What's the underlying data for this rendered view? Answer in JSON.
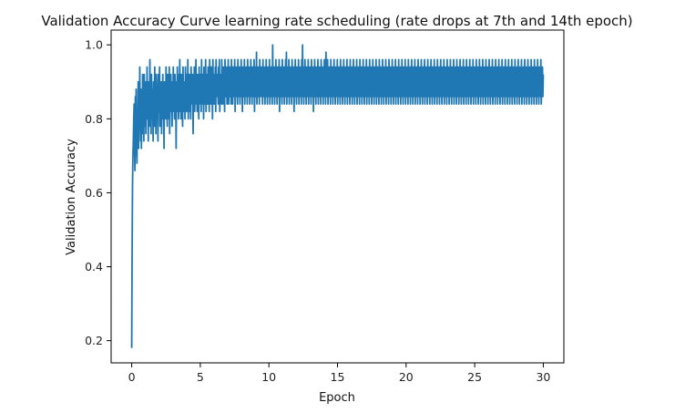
{
  "chart_data": {
    "type": "line",
    "title": "Validation Accuracy Curve learning rate scheduling (rate drops at 7th and 14th epoch)",
    "xlabel": "Epoch",
    "ylabel": "Validation Accuracy",
    "xlim": [
      -1.5,
      31.5
    ],
    "ylim": [
      0.14,
      1.04
    ],
    "xticks": [
      0,
      5,
      10,
      15,
      20,
      25,
      30
    ],
    "yticks": [
      0.2,
      0.4,
      0.6,
      0.8,
      1.0
    ],
    "grid": false,
    "legend": "none",
    "color": "#1f77b4",
    "series": [
      {
        "x_start": 0,
        "x_end": 30,
        "points_per_epoch": 25,
        "values": [
          0.18,
          0.44,
          0.62,
          0.7,
          0.74,
          0.8,
          0.84,
          0.72,
          0.66,
          0.86,
          0.7,
          0.88,
          0.76,
          0.68,
          0.82,
          0.74,
          0.9,
          0.72,
          0.86,
          0.78,
          0.94,
          0.8,
          0.74,
          0.88,
          0.72,
          0.84,
          0.76,
          0.92,
          0.8,
          0.86,
          0.74,
          0.92,
          0.84,
          0.78,
          0.9,
          0.76,
          0.86,
          0.82,
          0.94,
          0.8,
          0.88,
          0.74,
          0.9,
          0.84,
          0.78,
          0.96,
          0.82,
          0.86,
          0.76,
          0.92,
          0.84,
          0.8,
          0.88,
          0.74,
          0.9,
          0.86,
          0.78,
          0.94,
          0.82,
          0.86,
          0.76,
          0.92,
          0.88,
          0.8,
          0.84,
          0.74,
          0.92,
          0.86,
          0.82,
          0.94,
          0.78,
          0.88,
          0.84,
          0.9,
          0.76,
          0.86,
          0.82,
          0.92,
          0.8,
          0.88,
          0.72,
          0.9,
          0.84,
          0.86,
          0.8,
          0.94,
          0.82,
          0.88,
          0.78,
          0.92,
          0.86,
          0.84,
          0.8,
          0.94,
          0.76,
          0.88,
          0.86,
          0.92,
          0.82,
          0.84,
          0.78,
          0.9,
          0.86,
          0.94,
          0.82,
          0.88,
          0.8,
          0.92,
          0.84,
          0.86,
          0.72,
          0.9,
          0.86,
          0.94,
          0.82,
          0.88,
          0.8,
          0.92,
          0.84,
          0.96,
          0.82,
          0.86,
          0.8,
          0.92,
          0.88,
          0.84,
          0.78,
          0.94,
          0.86,
          0.9,
          0.82,
          0.88,
          0.8,
          0.94,
          0.86,
          0.92,
          0.82,
          0.88,
          0.84,
          0.96,
          0.8,
          0.9,
          0.86,
          0.92,
          0.82,
          0.88,
          0.8,
          0.94,
          0.86,
          0.9,
          0.84,
          0.92,
          0.76,
          0.9,
          0.86,
          0.94,
          0.82,
          0.88,
          0.84,
          0.96,
          0.86,
          0.9,
          0.82,
          0.92,
          0.88,
          0.86,
          0.8,
          0.94,
          0.84,
          0.9,
          0.86,
          0.92,
          0.82,
          0.96,
          0.86,
          0.9,
          0.84,
          0.92,
          0.8,
          0.94,
          0.86,
          0.88,
          0.84,
          0.96,
          0.82,
          0.9,
          0.86,
          0.92,
          0.84,
          0.94,
          0.86,
          0.9,
          0.82,
          0.96,
          0.88,
          0.9,
          0.84,
          0.94,
          0.86,
          0.92,
          0.8,
          0.96,
          0.88,
          0.9,
          0.84,
          0.92,
          0.86,
          0.94,
          0.82,
          0.96,
          0.88,
          0.9,
          0.86,
          0.92,
          0.84,
          0.94,
          0.86,
          0.96,
          0.82,
          0.9,
          0.88,
          0.92,
          0.84,
          0.96,
          0.86,
          0.9,
          0.84,
          0.94,
          0.88,
          0.92,
          0.82,
          0.96,
          0.86,
          0.9,
          0.86,
          0.94,
          0.84,
          0.92,
          0.88,
          0.96,
          0.84,
          0.9,
          0.86,
          0.94,
          0.86,
          0.92,
          0.84,
          0.96,
          0.88,
          0.9,
          0.84,
          0.94,
          0.86,
          0.92,
          0.88,
          0.96,
          0.82,
          0.9,
          0.86,
          0.94,
          0.88,
          0.92,
          0.84,
          0.96,
          0.86,
          0.9,
          0.88,
          0.94,
          0.84,
          0.92,
          0.86,
          0.96,
          0.88,
          0.9,
          0.82,
          0.94,
          0.86,
          0.92,
          0.86,
          0.96,
          0.84,
          0.9,
          0.88,
          0.94,
          0.86,
          0.92,
          0.84,
          0.96,
          0.88,
          0.9,
          0.86,
          0.94,
          0.84,
          0.92,
          0.88,
          0.96,
          0.86,
          0.9,
          0.84,
          0.94,
          0.88,
          0.92,
          0.86,
          0.96,
          0.82,
          0.9,
          0.88,
          0.94,
          0.86,
          0.98,
          0.84,
          0.9,
          0.86,
          0.94,
          0.88,
          0.92,
          0.84,
          0.96,
          0.86,
          0.9,
          0.88,
          0.94,
          0.86,
          0.92,
          0.84,
          0.96,
          0.88,
          0.9,
          0.86,
          0.94,
          0.84,
          0.92,
          0.88,
          0.96,
          0.86,
          0.9,
          0.84,
          0.94,
          0.88,
          0.92,
          0.86,
          0.96,
          0.84,
          0.9,
          0.88,
          0.94,
          0.86,
          0.92,
          0.84,
          1.0,
          0.88,
          0.9,
          0.86,
          0.94,
          0.84,
          0.92,
          0.88,
          0.96,
          0.86,
          0.9,
          0.84,
          0.94,
          0.88,
          0.92,
          0.86,
          0.96,
          0.82,
          0.9,
          0.88,
          0.94,
          0.86,
          0.92,
          0.84,
          0.96,
          0.88,
          0.9,
          0.86,
          0.94,
          0.84,
          0.92,
          0.88,
          0.96,
          0.86,
          0.98,
          0.84,
          0.94,
          0.88,
          0.92,
          0.86,
          0.96,
          0.84,
          0.9,
          0.88,
          0.94,
          0.86,
          0.92,
          0.84,
          0.96,
          0.88,
          0.9,
          0.86,
          0.94,
          0.82,
          0.92,
          0.88,
          0.96,
          0.86,
          0.9,
          0.84,
          0.94,
          0.88,
          0.92,
          0.86,
          0.96,
          0.84,
          0.9,
          0.88,
          0.94,
          0.86,
          0.92,
          0.84,
          0.96,
          0.88,
          1.0,
          0.86,
          0.94,
          0.84,
          0.92,
          0.88,
          0.96,
          0.86,
          0.9,
          0.84,
          0.94,
          0.88,
          0.92,
          0.86,
          0.96,
          0.84,
          0.9,
          0.88,
          0.94,
          0.86,
          0.92,
          0.84,
          0.96,
          0.88,
          0.9,
          0.86,
          0.94,
          0.82,
          0.92,
          0.88,
          0.96,
          0.86,
          0.9,
          0.84,
          0.94,
          0.88,
          0.92,
          0.86,
          0.96,
          0.84,
          0.9,
          0.88,
          0.94,
          0.86,
          0.92,
          0.84,
          0.96,
          0.88,
          0.9,
          0.86,
          0.94,
          0.84,
          0.92,
          0.88,
          0.96,
          0.86,
          0.9,
          0.84,
          0.98,
          0.88,
          0.92,
          0.86,
          0.96,
          0.84,
          0.9,
          0.88,
          0.94,
          0.86,
          0.92,
          0.84,
          0.96,
          0.88,
          0.9,
          0.86,
          0.94,
          0.84,
          0.92,
          0.88,
          0.96,
          0.86,
          0.9,
          0.84,
          0.94,
          0.88,
          0.92,
          0.86,
          0.96,
          0.84,
          0.9,
          0.88,
          0.94,
          0.86,
          0.92,
          0.84,
          0.96,
          0.88,
          0.9,
          0.86,
          0.94,
          0.84,
          0.92,
          0.88,
          0.96,
          0.86,
          0.9,
          0.84,
          0.94,
          0.88,
          0.92,
          0.86,
          0.96,
          0.84,
          0.9,
          0.88,
          0.94,
          0.86,
          0.92,
          0.84,
          0.96,
          0.88,
          0.9,
          0.86,
          0.94,
          0.84,
          0.92,
          0.88,
          0.96,
          0.86,
          0.9,
          0.84,
          0.94,
          0.88,
          0.92,
          0.86,
          0.96,
          0.84,
          0.9,
          0.88,
          0.94,
          0.86,
          0.92,
          0.84,
          0.96,
          0.88,
          0.9,
          0.86,
          0.94,
          0.84,
          0.92,
          0.88,
          0.96,
          0.86,
          0.9,
          0.84,
          0.94,
          0.88,
          0.92,
          0.86,
          0.96,
          0.84,
          0.9,
          0.88,
          0.94,
          0.86,
          0.92,
          0.84,
          0.96,
          0.88,
          0.9,
          0.86,
          0.94,
          0.84,
          0.92,
          0.88,
          0.96,
          0.86,
          0.9,
          0.84,
          0.94,
          0.88,
          0.92,
          0.86,
          0.96,
          0.84,
          0.9,
          0.88,
          0.94,
          0.86,
          0.92,
          0.84,
          0.96,
          0.88,
          0.9,
          0.86,
          0.94,
          0.84,
          0.92,
          0.88,
          0.96,
          0.86,
          0.9,
          0.84,
          0.94,
          0.88,
          0.92,
          0.86,
          0.96,
          0.84,
          0.9,
          0.88,
          0.94,
          0.86,
          0.92,
          0.84,
          0.96,
          0.88,
          0.9,
          0.86,
          0.94,
          0.84,
          0.92,
          0.88,
          0.96,
          0.86,
          0.9,
          0.84,
          0.94,
          0.88,
          0.92,
          0.86,
          0.96,
          0.84,
          0.9,
          0.88,
          0.94,
          0.86,
          0.92,
          0.84,
          0.96,
          0.88,
          0.9,
          0.86,
          0.94,
          0.84,
          0.92,
          0.88,
          0.96,
          0.86,
          0.9,
          0.84,
          0.94,
          0.88,
          0.92,
          0.86,
          0.96,
          0.84,
          0.9,
          0.88,
          0.94,
          0.86,
          0.92,
          0.84,
          0.96,
          0.88,
          0.9,
          0.86,
          0.94,
          0.84,
          0.92,
          0.88,
          0.96,
          0.86,
          0.9,
          0.84,
          0.94,
          0.88,
          0.92,
          0.86,
          0.96,
          0.84,
          0.9,
          0.88,
          0.94,
          0.86,
          0.92,
          0.84,
          0.96,
          0.88,
          0.9,
          0.86,
          0.94,
          0.84,
          0.92,
          0.88,
          0.96,
          0.86,
          0.9,
          0.84,
          0.94,
          0.88,
          0.92,
          0.86,
          0.96,
          0.84,
          0.9,
          0.88,
          0.94,
          0.86,
          0.92,
          0.84,
          0.96,
          0.88,
          0.9,
          0.86,
          0.94,
          0.84,
          0.92,
          0.88,
          0.96,
          0.86,
          0.9,
          0.84,
          0.94,
          0.88,
          0.92,
          0.86,
          0.96,
          0.84,
          0.9,
          0.88,
          0.94,
          0.86,
          0.92,
          0.84,
          0.96,
          0.88,
          0.9,
          0.86,
          0.94,
          0.84,
          0.92,
          0.88,
          0.96,
          0.86,
          0.9,
          0.84,
          0.94,
          0.88,
          0.92,
          0.86,
          0.96,
          0.84,
          0.9,
          0.88,
          0.94,
          0.86,
          0.92,
          0.84,
          0.96,
          0.88,
          0.9,
          0.86,
          0.94,
          0.84,
          0.92,
          0.88,
          0.96,
          0.86,
          0.9,
          0.84,
          0.94,
          0.88,
          0.92,
          0.86,
          0.96,
          0.84,
          0.9,
          0.88,
          0.94,
          0.86,
          0.92,
          0.84,
          0.96,
          0.88,
          0.9,
          0.86,
          0.94,
          0.84,
          0.92,
          0.88,
          0.96,
          0.86,
          0.9,
          0.84,
          0.94,
          0.88,
          0.92,
          0.86,
          0.96,
          0.84,
          0.9,
          0.88,
          0.94,
          0.86,
          0.92,
          0.84,
          0.96,
          0.88,
          0.9,
          0.86,
          0.94,
          0.84,
          0.92,
          0.88,
          0.96,
          0.86,
          0.9,
          0.84,
          0.94,
          0.88,
          0.92,
          0.86,
          0.96,
          0.84,
          0.9,
          0.88,
          0.94,
          0.86,
          0.92,
          0.84,
          0.96,
          0.88,
          0.9,
          0.86,
          0.94,
          0.84,
          0.92,
          0.88,
          0.96,
          0.86,
          0.9,
          0.84,
          0.94,
          0.88,
          0.92,
          0.86,
          0.96,
          0.84,
          0.9,
          0.88,
          0.94,
          0.86,
          0.92,
          0.84,
          0.96,
          0.88,
          0.9,
          0.86,
          0.94,
          0.84,
          0.92,
          0.88,
          0.96,
          0.86,
          0.9,
          0.84,
          0.94,
          0.88,
          0.92,
          0.86,
          0.96,
          0.84,
          0.9,
          0.88,
          0.94,
          0.86,
          0.92,
          0.84,
          0.96,
          0.88,
          0.9,
          0.86,
          0.94,
          0.84,
          0.92,
          0.88,
          0.96,
          0.86,
          0.9,
          0.84,
          0.94,
          0.88,
          0.92,
          0.86,
          0.96,
          0.84,
          0.9,
          0.88,
          0.94,
          0.86,
          0.92,
          0.84,
          0.96,
          0.88,
          0.9,
          0.86,
          0.94,
          0.84,
          0.92,
          0.88,
          0.96,
          0.86,
          0.9,
          0.84,
          0.94,
          0.88,
          0.92,
          0.86,
          0.96,
          0.84,
          0.9,
          0.88,
          0.94,
          0.86,
          0.92,
          0.84,
          0.96,
          0.88,
          0.9,
          0.86,
          0.94,
          0.84,
          0.92,
          0.88,
          0.96,
          0.86,
          0.9,
          0.84,
          0.94,
          0.88,
          0.92,
          0.86,
          0.96,
          0.84,
          0.9,
          0.88,
          0.94,
          0.86,
          0.92,
          0.84,
          0.96,
          0.88,
          0.9,
          0.86,
          0.94,
          0.84,
          0.92,
          0.88,
          0.96,
          0.86,
          0.9,
          0.84,
          0.94,
          0.88,
          0.92,
          0.86,
          0.96,
          0.84,
          0.9,
          0.88,
          0.94,
          0.86,
          0.92,
          0.84,
          0.96,
          0.88,
          0.9,
          0.86,
          0.94,
          0.84,
          0.92,
          0.88,
          0.96,
          0.86,
          0.9,
          0.84,
          0.94,
          0.88,
          0.92,
          0.86,
          0.96,
          0.84,
          0.9,
          0.88,
          0.94,
          0.86,
          0.92
        ]
      }
    ]
  }
}
